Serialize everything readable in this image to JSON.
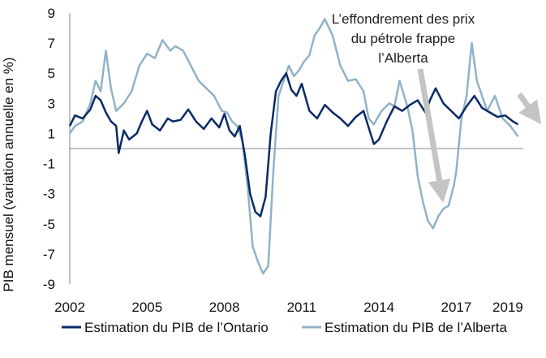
{
  "chart_data": {
    "type": "line",
    "ylabel": "PIB mensuel (variation annuelle en %)",
    "ylim": [
      -9,
      9
    ],
    "yticks": [
      9,
      7,
      5,
      3,
      1,
      -1,
      -3,
      -5,
      -7,
      -9
    ],
    "xlim": [
      2002,
      2019.6
    ],
    "xticks": [
      2002,
      2005,
      2008,
      2011,
      2014,
      2017,
      2019
    ],
    "xtick_labels": [
      "2002",
      "2005",
      "2008",
      "2011",
      "2014",
      "2017",
      "2019"
    ],
    "zero_line": 0,
    "grid": false,
    "annotation": {
      "lines": [
        "L’effondrement des prix",
        "du pétrole frappe",
        "l’Alberta"
      ]
    },
    "legend_position": "bottom",
    "series": [
      {
        "name": "Estimation du PIB de l’Ontario",
        "color": "#0a2a66",
        "x": [
          2002.0,
          2002.2,
          2002.5,
          2002.8,
          2003.0,
          2003.2,
          2003.4,
          2003.6,
          2003.8,
          2003.9,
          2004.1,
          2004.3,
          2004.6,
          2004.8,
          2005.0,
          2005.2,
          2005.5,
          2005.8,
          2006.0,
          2006.3,
          2006.6,
          2006.9,
          2007.2,
          2007.5,
          2007.8,
          2008.0,
          2008.2,
          2008.4,
          2008.6,
          2008.8,
          2009.0,
          2009.2,
          2009.4,
          2009.6,
          2009.8,
          2010.0,
          2010.2,
          2010.4,
          2010.6,
          2010.8,
          2011.0,
          2011.3,
          2011.6,
          2011.9,
          2012.2,
          2012.5,
          2012.8,
          2013.1,
          2013.4,
          2013.6,
          2013.8,
          2014.0,
          2014.3,
          2014.6,
          2014.9,
          2015.2,
          2015.5,
          2015.8,
          2016.0,
          2016.2,
          2016.5,
          2016.8,
          2017.1,
          2017.4,
          2017.7,
          2018.0,
          2018.3,
          2018.6,
          2018.9,
          2019.2,
          2019.4
        ],
        "y": [
          1.5,
          2.2,
          2.0,
          2.6,
          3.5,
          3.2,
          2.4,
          1.8,
          1.5,
          -0.3,
          1.2,
          0.6,
          1.0,
          1.8,
          2.5,
          1.6,
          1.2,
          2.0,
          1.8,
          1.9,
          2.6,
          1.8,
          1.3,
          2.0,
          1.4,
          2.3,
          1.2,
          0.8,
          1.5,
          -0.5,
          -3.0,
          -4.2,
          -4.5,
          -3.2,
          1.0,
          3.8,
          4.5,
          5.0,
          3.9,
          3.5,
          4.3,
          2.5,
          2.0,
          2.9,
          2.4,
          2.0,
          1.5,
          2.1,
          2.5,
          1.4,
          0.3,
          0.6,
          1.8,
          2.8,
          2.5,
          2.9,
          3.2,
          2.4,
          3.3,
          4.0,
          3.0,
          2.5,
          2.0,
          2.8,
          3.5,
          2.7,
          2.4,
          2.1,
          2.2,
          1.8,
          1.6
        ]
      },
      {
        "name": "Estimation du PIB de l’Alberta",
        "color": "#8fb3c8",
        "x": [
          2002.0,
          2002.2,
          2002.5,
          2002.8,
          2003.0,
          2003.2,
          2003.4,
          2003.6,
          2003.8,
          2004.1,
          2004.4,
          2004.7,
          2005.0,
          2005.3,
          2005.6,
          2005.9,
          2006.1,
          2006.4,
          2006.7,
          2007.0,
          2007.3,
          2007.6,
          2007.9,
          2008.1,
          2008.3,
          2008.5,
          2008.7,
          2008.9,
          2009.1,
          2009.3,
          2009.5,
          2009.7,
          2009.9,
          2010.1,
          2010.3,
          2010.5,
          2010.7,
          2010.9,
          2011.1,
          2011.3,
          2011.5,
          2011.7,
          2011.9,
          2012.2,
          2012.5,
          2012.8,
          2013.1,
          2013.4,
          2013.6,
          2013.8,
          2014.1,
          2014.4,
          2014.6,
          2014.8,
          2015.1,
          2015.3,
          2015.5,
          2015.7,
          2015.9,
          2016.1,
          2016.3,
          2016.5,
          2016.7,
          2016.9,
          2017.0,
          2017.2,
          2017.4,
          2017.6,
          2017.8,
          2018.0,
          2018.2,
          2018.5,
          2018.8,
          2019.1,
          2019.4
        ],
        "y": [
          1.0,
          1.5,
          1.8,
          3.0,
          4.5,
          3.8,
          6.5,
          4.0,
          2.5,
          3.0,
          3.8,
          5.5,
          6.3,
          6.0,
          7.2,
          6.5,
          6.8,
          6.5,
          5.5,
          4.5,
          4.0,
          3.5,
          2.5,
          2.4,
          1.8,
          1.5,
          0.5,
          -2.5,
          -6.5,
          -7.5,
          -8.3,
          -7.8,
          -1.5,
          3.5,
          4.5,
          5.5,
          4.8,
          5.2,
          5.8,
          6.2,
          7.5,
          8.0,
          8.6,
          7.5,
          5.5,
          4.5,
          4.6,
          3.8,
          2.0,
          1.6,
          2.5,
          3.0,
          2.8,
          4.5,
          2.8,
          1.2,
          -1.8,
          -3.5,
          -4.8,
          -5.3,
          -4.5,
          -4.0,
          -3.8,
          -2.5,
          -1.5,
          2.0,
          3.5,
          7.0,
          4.5,
          3.5,
          2.5,
          3.5,
          2.0,
          1.5,
          0.8
        ]
      }
    ]
  }
}
